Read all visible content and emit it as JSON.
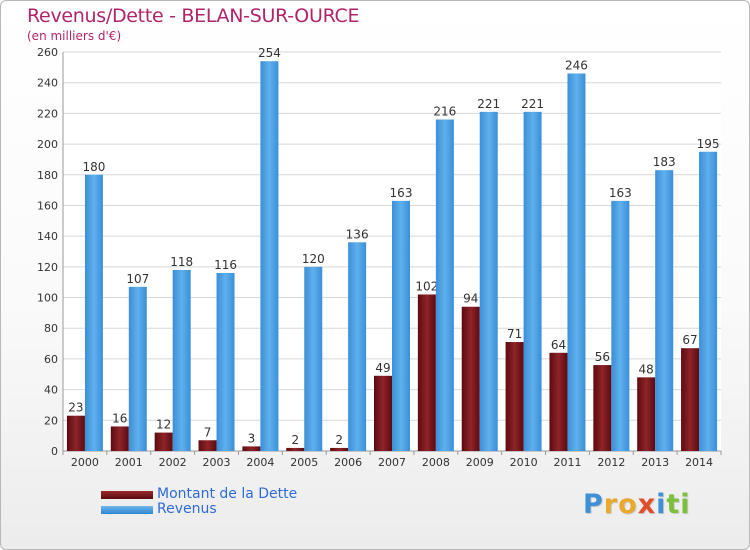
{
  "chart_data": {
    "type": "bar",
    "title": "Revenus/Dette - BELAN-SUR-OURCE",
    "subtitle": "(en milliers d'€)",
    "categories": [
      "2000",
      "2001",
      "2002",
      "2003",
      "2004",
      "2005",
      "2006",
      "2007",
      "2008",
      "2009",
      "2010",
      "2011",
      "2012",
      "2013",
      "2014"
    ],
    "series": [
      {
        "name": "Montant de la Dette",
        "color": "#7a1a1e",
        "values": [
          23,
          16,
          12,
          7,
          3,
          2,
          2,
          49,
          102,
          94,
          71,
          64,
          56,
          48,
          67
        ]
      },
      {
        "name": "Revenus",
        "color": "#4d9fe0",
        "values": [
          180,
          107,
          118,
          116,
          254,
          120,
          136,
          163,
          216,
          221,
          221,
          246,
          163,
          183,
          195
        ]
      }
    ],
    "ylim": [
      0,
      260
    ],
    "yticks": [
      0,
      20,
      40,
      60,
      80,
      100,
      120,
      140,
      160,
      180,
      200,
      220,
      240,
      260
    ],
    "grid": true,
    "legend": "bottom-left"
  },
  "logo": {
    "letters": [
      "P",
      "r",
      "o",
      "x",
      "i",
      "t",
      "i"
    ],
    "colors": [
      "#3d8fd6",
      "#e9a92d",
      "#e9a92d",
      "#e04e2a",
      "#3d8fd6",
      "#7cbf3b",
      "#7cbf3b"
    ]
  }
}
